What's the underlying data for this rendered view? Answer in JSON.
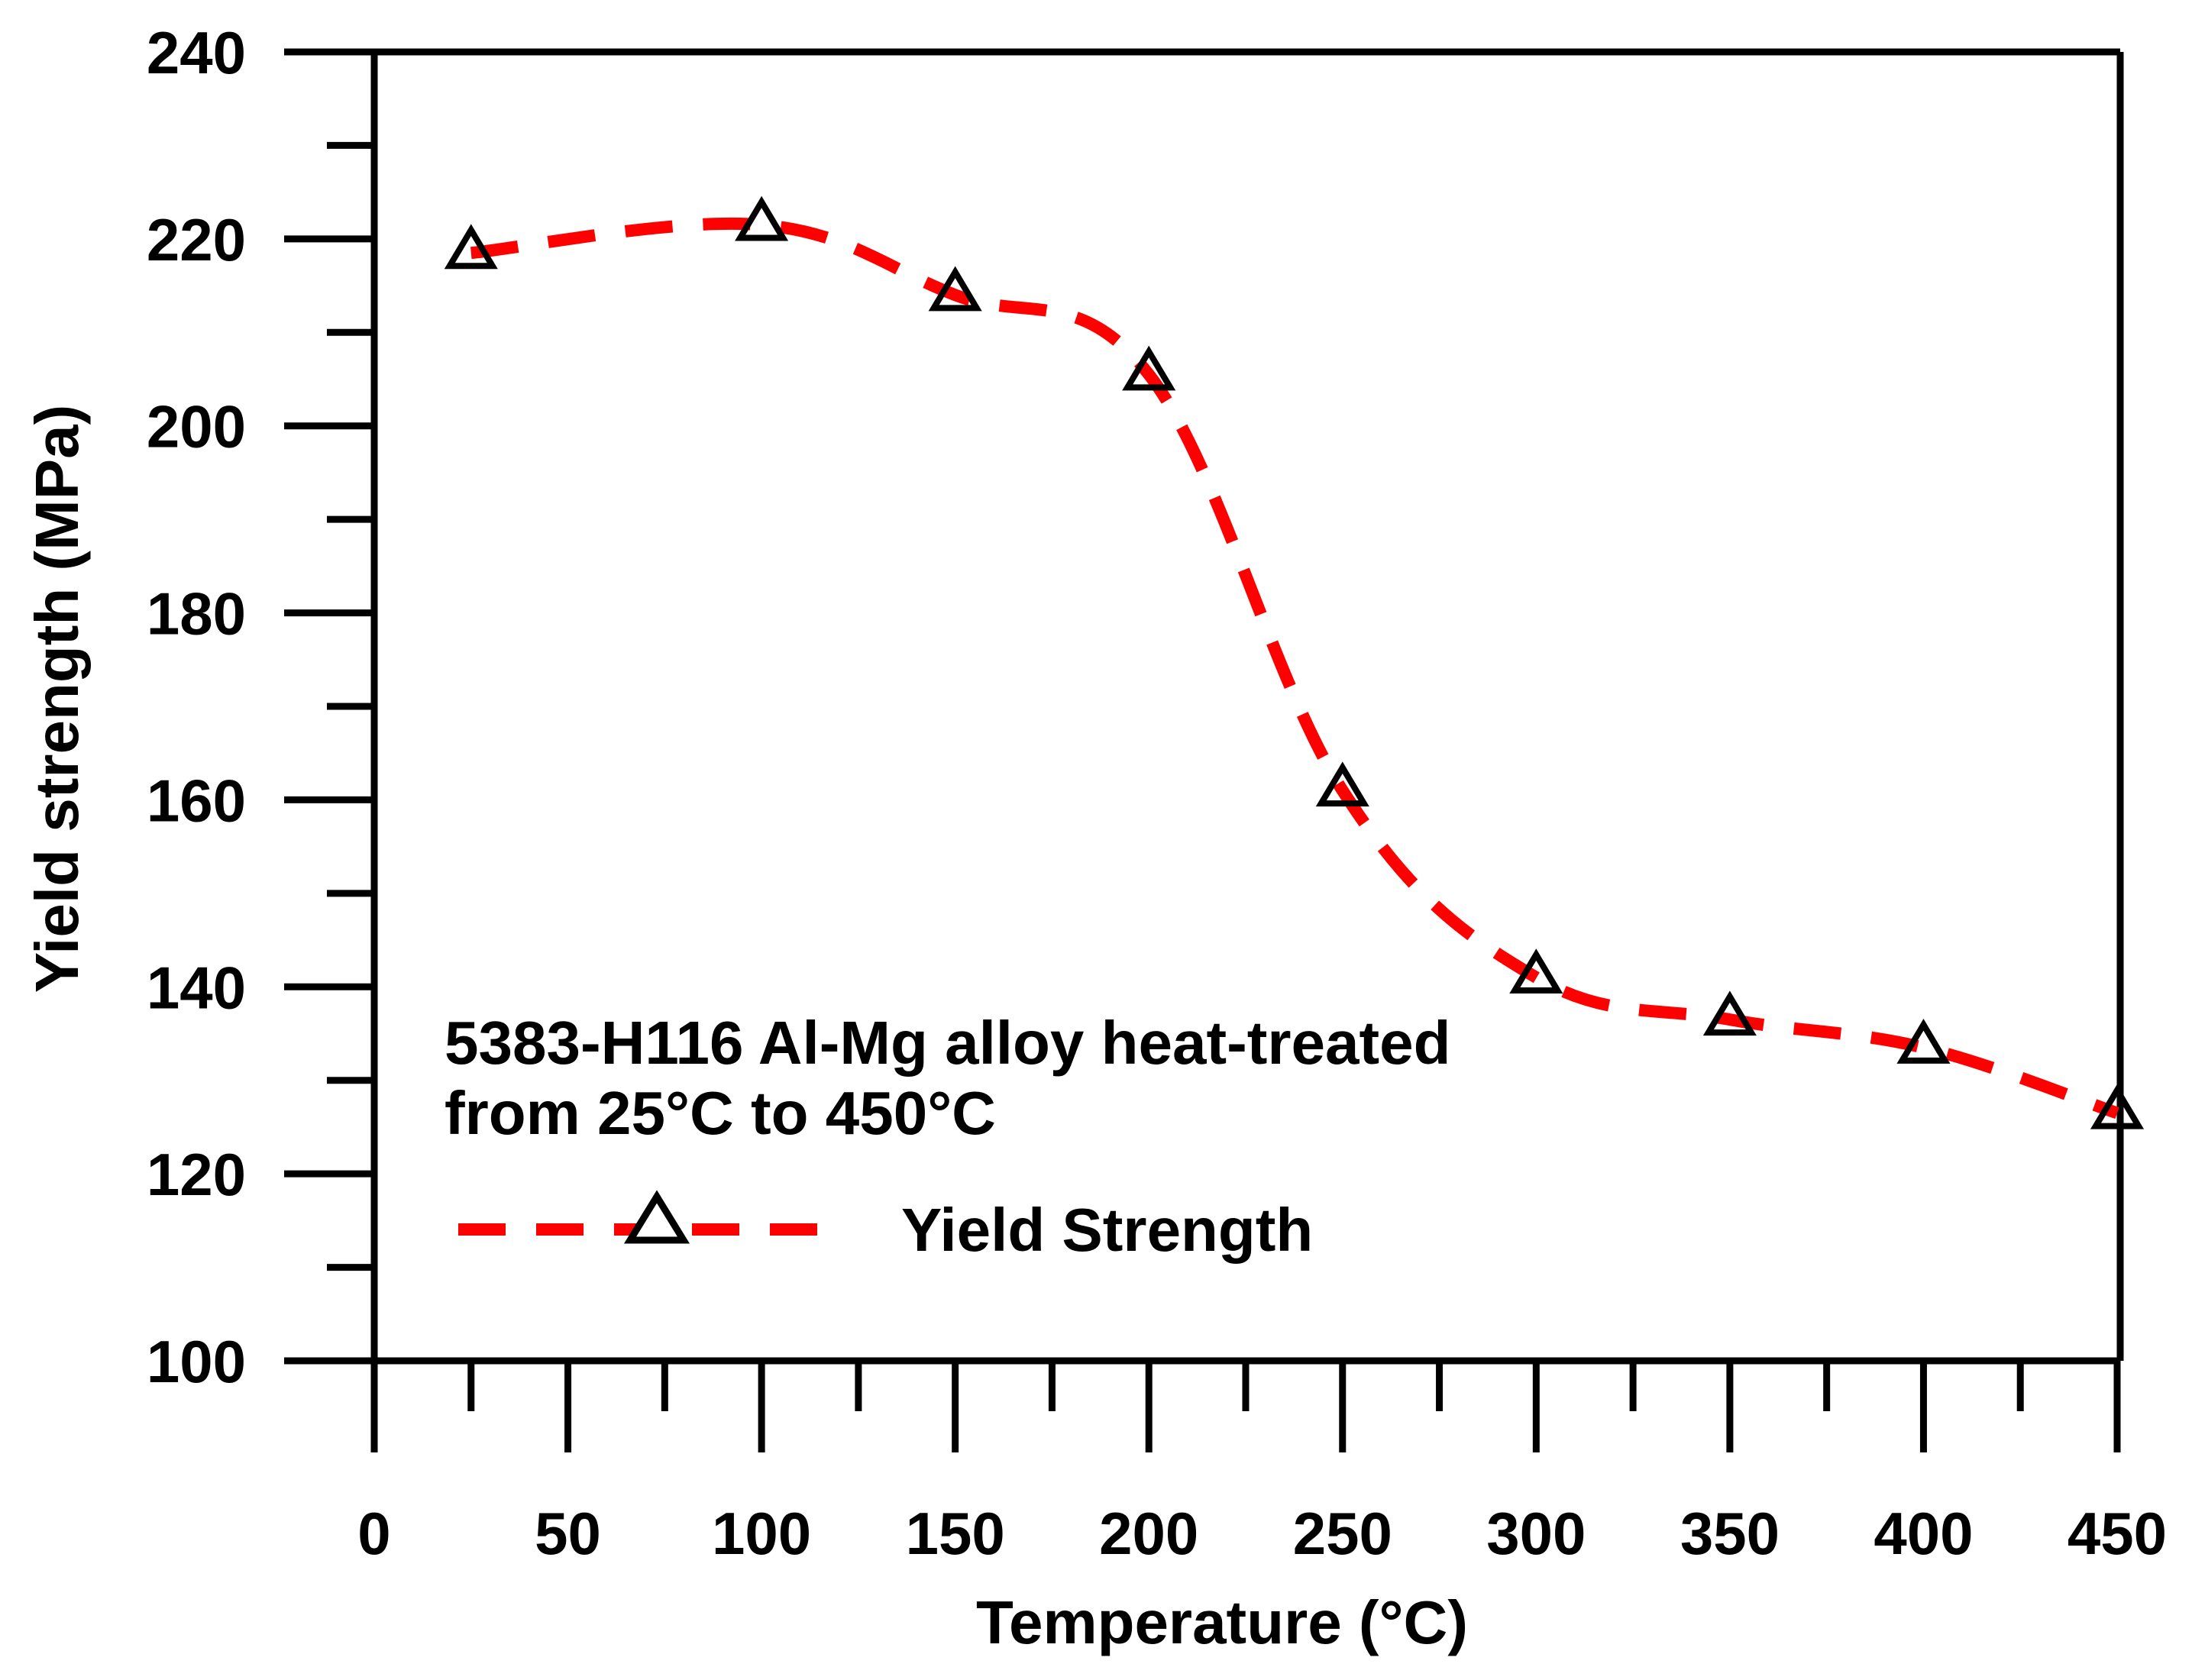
{
  "chart_data": {
    "type": "line",
    "title": "",
    "xlabel": "Temperature (°C)",
    "ylabel": "Yield strength (MPa)",
    "xlim": [
      0,
      450
    ],
    "ylim": [
      100,
      240
    ],
    "xticks": [
      0,
      50,
      100,
      150,
      200,
      250,
      300,
      350,
      400,
      450
    ],
    "yticks": [
      100,
      120,
      140,
      160,
      180,
      200,
      220,
      240
    ],
    "x_minor_step": 25,
    "y_minor_step": 10,
    "grid": false,
    "annotation_lines": [
      "5383-H116 Al-Mg alloy heat-treated",
      "from 25°C to 450°C"
    ],
    "series": [
      {
        "name": "Yield Strength",
        "color": "#ff0000",
        "line_style": "dashed",
        "marker": "open-triangle",
        "marker_color": "#000000",
        "x": [
          25,
          100,
          150,
          200,
          250,
          300,
          350,
          400,
          450
        ],
        "values": [
          218.5,
          221.5,
          214,
          205.5,
          161,
          141,
          136.5,
          133.5,
          126.5
        ]
      }
    ],
    "legend": {
      "position": "bottom-left",
      "label": "Yield Strength"
    }
  }
}
